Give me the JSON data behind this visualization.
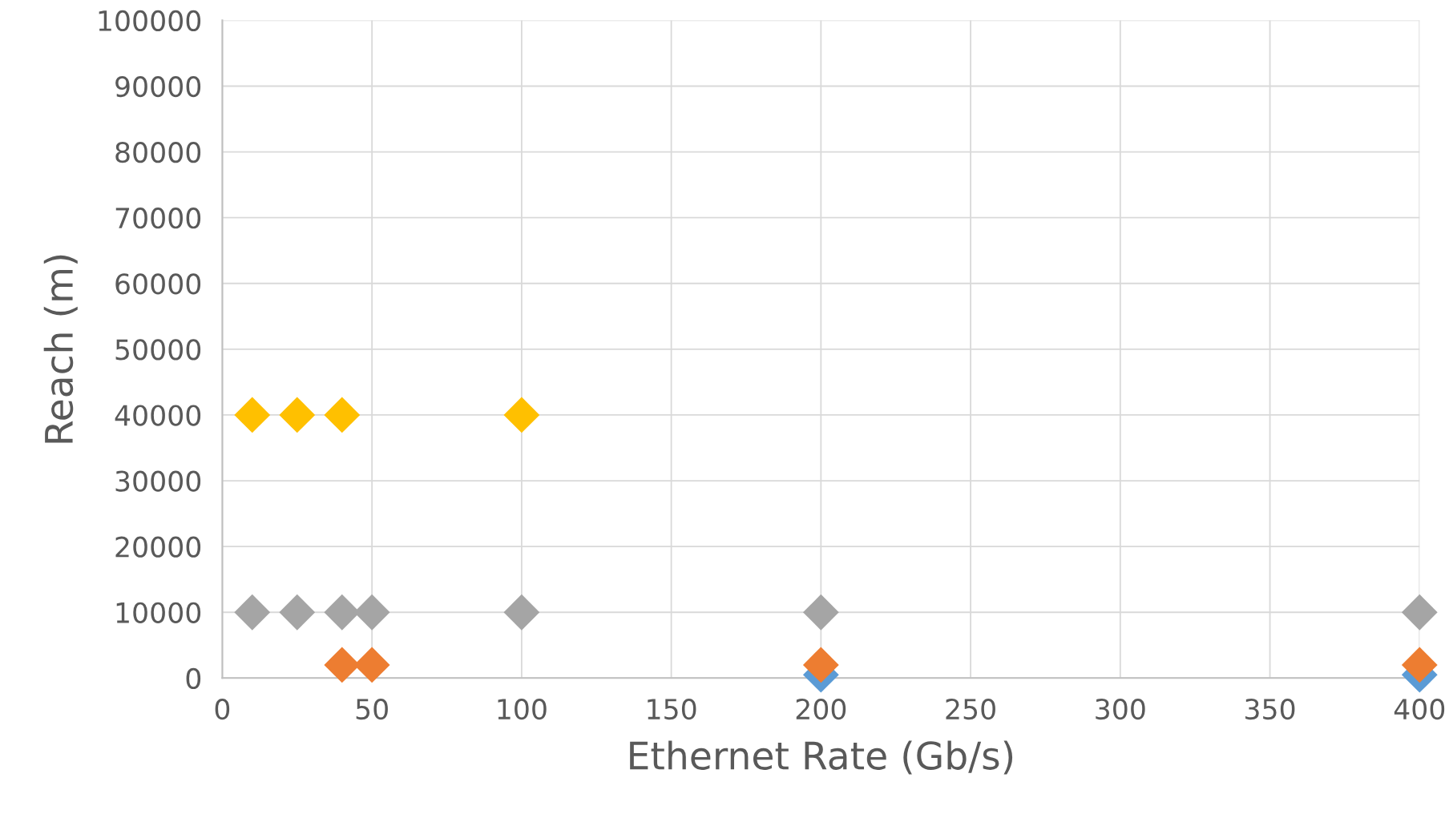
{
  "chart_data": {
    "type": "scatter",
    "xlabel": "Ethernet Rate (Gb/s)",
    "ylabel": "Reach (m)",
    "series": [
      {
        "color": "#5b9bd5",
        "x": [
          200,
          400
        ],
        "values": [
          500,
          500
        ]
      },
      {
        "color": "#ed7d31",
        "x": [
          40,
          50,
          200,
          400
        ],
        "values": [
          2000,
          2000,
          2000,
          2000
        ]
      },
      {
        "color": "#a5a5a5",
        "x": [
          10,
          25,
          40,
          50,
          100,
          200,
          400
        ],
        "values": [
          10000,
          10000,
          10000,
          10000,
          10000,
          10000,
          10000
        ]
      },
      {
        "color": "#ffc000",
        "x": [
          10,
          25,
          40,
          100
        ],
        "values": [
          40000,
          40000,
          40000,
          40000
        ]
      }
    ],
    "xlim": [
      0,
      400
    ],
    "xticks": [
      0,
      50,
      100,
      150,
      200,
      250,
      300,
      350,
      400
    ],
    "ylim": [
      0,
      100000
    ],
    "yticks": [
      0,
      10000,
      20000,
      30000,
      40000,
      50000,
      60000,
      70000,
      80000,
      90000,
      100000
    ],
    "grid": true,
    "marker": "diamond"
  }
}
